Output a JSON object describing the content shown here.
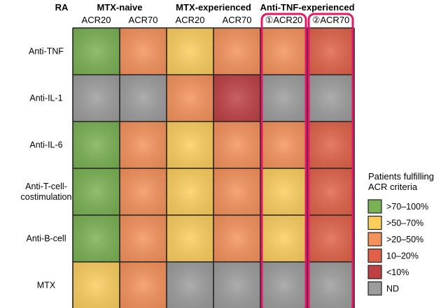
{
  "chart_data": {
    "type": "heatmap",
    "corner_label": "RA",
    "column_groups": [
      {
        "label": "MTX-naive",
        "columns": [
          "ACR20",
          "ACR70"
        ]
      },
      {
        "label": "MTX-experienced",
        "columns": [
          "ACR20",
          "ACR70"
        ]
      },
      {
        "label": "Anti-TNF-experienced",
        "columns": [
          "ACR20",
          "ACR70"
        ]
      }
    ],
    "columns": [
      "ACR20",
      "ACR70",
      "ACR20",
      "ACR70",
      "ACR20",
      "ACR70"
    ],
    "column_markers": [
      "",
      "",
      "",
      "",
      "①",
      "②"
    ],
    "rows": [
      {
        "label": [
          "Anti-TNF"
        ],
        "values": [
          ">70–100%",
          ">20–50%",
          ">50–70%",
          ">20–50%",
          ">20–50%",
          "10–20%"
        ]
      },
      {
        "label": [
          "Anti-IL-1"
        ],
        "values": [
          "ND",
          "ND",
          ">20–50%",
          "<10%",
          "ND",
          "ND"
        ]
      },
      {
        "label": [
          "Anti-IL-6"
        ],
        "values": [
          ">70–100%",
          ">20–50%",
          ">50–70%",
          ">20–50%",
          ">20–50%",
          "10–20%"
        ]
      },
      {
        "label": [
          "Anti-T-cell-",
          "costimulation"
        ],
        "values": [
          ">70–100%",
          ">20–50%",
          ">50–70%",
          ">20–50%",
          ">50–70%",
          "10–20%"
        ]
      },
      {
        "label": [
          "Anti-B-cell"
        ],
        "values": [
          ">70–100%",
          ">20–50%",
          ">50–70%",
          ">20–50%",
          ">50–70%",
          "10–20%"
        ]
      },
      {
        "label": [
          "MTX"
        ],
        "values": [
          ">50–70%",
          ">20–50%",
          "ND",
          "ND",
          "ND",
          "ND"
        ]
      }
    ],
    "highlighted_columns": [
      4,
      5
    ],
    "highlight_color": "#e0196a",
    "legend": {
      "title": [
        "Patients fulfilling",
        "ACR criteria"
      ],
      "placement": "right",
      "entries": [
        {
          "label": ">70–100%",
          "color": "#79b153"
        },
        {
          "label": ">50–70%",
          "color": "#fbcd5d"
        },
        {
          "label": ">20–50%",
          "color": "#f5915b"
        },
        {
          "label": "10–20%",
          "color": "#e06147"
        },
        {
          "label": "<10%",
          "color": "#be4043"
        },
        {
          "label": "ND",
          "color": "#9c9c9c"
        }
      ]
    }
  }
}
